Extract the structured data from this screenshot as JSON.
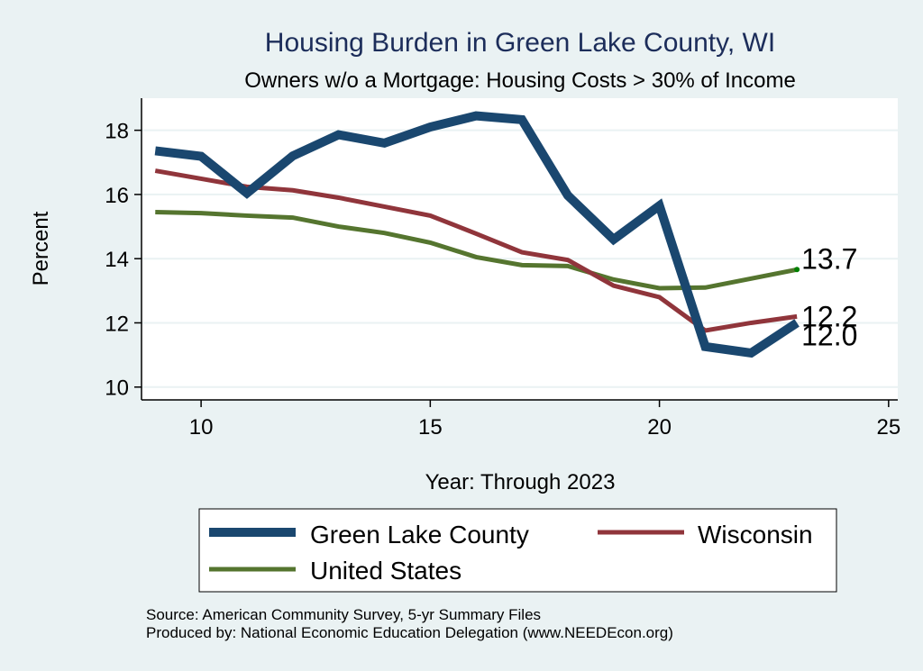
{
  "chart_data": {
    "type": "line",
    "title": "Housing Burden in Green Lake County, WI",
    "subtitle": "Owners w/o a Mortgage: Housing Costs > 30% of Income",
    "xlabel": "Year: Through 2023",
    "ylabel": "Percent",
    "xlim": [
      8.7,
      25.2
    ],
    "ylim": [
      9.6,
      19.0
    ],
    "xticks": [
      10,
      15,
      20,
      25
    ],
    "yticks": [
      10,
      12,
      14,
      16,
      18
    ],
    "grid": true,
    "x": [
      9,
      10,
      11,
      12,
      13,
      14,
      15,
      16,
      17,
      18,
      19,
      20,
      21,
      22,
      23
    ],
    "series": [
      {
        "name": "Green Lake County",
        "color": "#1a476f",
        "values": [
          17.36,
          17.19,
          16.04,
          17.2,
          17.86,
          17.6,
          18.1,
          18.45,
          18.33,
          15.97,
          14.6,
          15.65,
          11.26,
          11.06,
          12.0
        ],
        "end_label": "12.0"
      },
      {
        "name": "Wisconsin",
        "color": "#90353b",
        "values": [
          16.74,
          16.49,
          16.24,
          16.13,
          15.9,
          15.62,
          15.34,
          14.78,
          14.2,
          13.96,
          13.16,
          12.8,
          11.76,
          12.0,
          12.2
        ],
        "end_label": "12.2"
      },
      {
        "name": "United States",
        "color": "#55752f",
        "values": [
          15.45,
          15.42,
          15.34,
          15.28,
          15.0,
          14.8,
          14.5,
          14.05,
          13.8,
          13.77,
          13.35,
          13.08,
          13.1,
          13.38,
          13.66
        ],
        "end_label": "13.7"
      }
    ],
    "legend": {
      "position": "bottom",
      "entries": [
        "Green Lake County",
        "Wisconsin",
        "United States"
      ]
    },
    "notes": [
      "Source: American Community Survey, 5-yr Summary Files",
      "Produced by: National Economic Education Delegation (www.NEEDEcon.org)"
    ]
  }
}
